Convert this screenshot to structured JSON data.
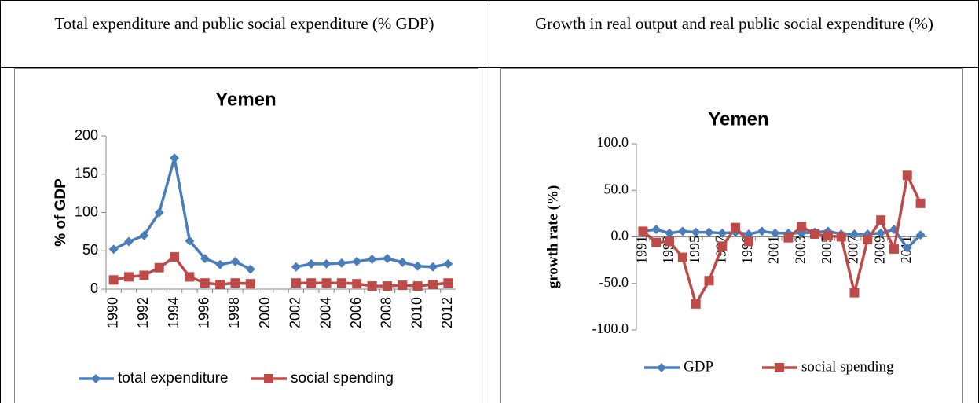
{
  "table": {
    "headers": [
      "Total expenditure and public social expenditure (% GDP)",
      "Growth in real output and real public social expenditure (%)"
    ]
  },
  "chart_data": [
    {
      "type": "line",
      "title": "Yemen",
      "y_label": "% of GDP",
      "categories": [
        "1990",
        null,
        "1992",
        null,
        "1994",
        null,
        "1996",
        null,
        "1998",
        null,
        "2000",
        null,
        "2002",
        null,
        "2004",
        null,
        "2006",
        null,
        "2008",
        null,
        "2010",
        null,
        "2012"
      ],
      "series": [
        {
          "name": "total expenditure",
          "color": "#4a7ebb",
          "marker": "diamond",
          "values": [
            52,
            62,
            70,
            100,
            171,
            63,
            40,
            32,
            36,
            26,
            null,
            null,
            29,
            33,
            33,
            34,
            36,
            39,
            40,
            35,
            30,
            29,
            33
          ]
        },
        {
          "name": "social spending",
          "color": "#be4b48",
          "marker": "square",
          "values": [
            12,
            16,
            18,
            28,
            42,
            16,
            8,
            6,
            8,
            7,
            null,
            null,
            8,
            8,
            8,
            8,
            7,
            4,
            4,
            5,
            4,
            6,
            8
          ]
        }
      ],
      "ylim": [
        0,
        200
      ],
      "yticks": [
        0,
        50,
        100,
        150,
        200
      ],
      "grid": false,
      "legend": "bottom"
    },
    {
      "type": "line",
      "title": "Yemen",
      "y_label": "growth rate (%)",
      "categories": [
        "1991",
        null,
        "1993",
        null,
        "1995",
        null,
        "1997",
        null,
        "1999",
        null,
        "2001",
        null,
        "2003",
        null,
        "2005",
        null,
        "2007",
        null,
        "2009",
        null,
        "2011",
        null
      ],
      "series": [
        {
          "name": "GDP",
          "color": "#4a7ebb",
          "marker": "diamond",
          "values": [
            6,
            8,
            4,
            6,
            5,
            5,
            4,
            5,
            3,
            6,
            4,
            4,
            4,
            5,
            6,
            3,
            3,
            3,
            4,
            8,
            -12,
            2
          ]
        },
        {
          "name": "social spending",
          "color": "#be4b48",
          "marker": "square",
          "values": [
            6,
            -6,
            -5,
            -22,
            -72,
            -47,
            -10,
            10,
            -5,
            null,
            null,
            -1,
            11,
            3,
            1,
            0,
            -60,
            -3,
            18,
            -13,
            66,
            36
          ]
        }
      ],
      "ylim": [
        -100,
        100
      ],
      "yticks": [
        {
          "value": -100,
          "label": "-100.0"
        },
        {
          "value": -50,
          "label": "-50.0"
        },
        {
          "value": 0,
          "label": "0.0"
        },
        {
          "value": 50,
          "label": "50.0"
        },
        {
          "value": 100,
          "label": "100.0"
        }
      ],
      "grid": false,
      "legend": "bottom"
    }
  ]
}
